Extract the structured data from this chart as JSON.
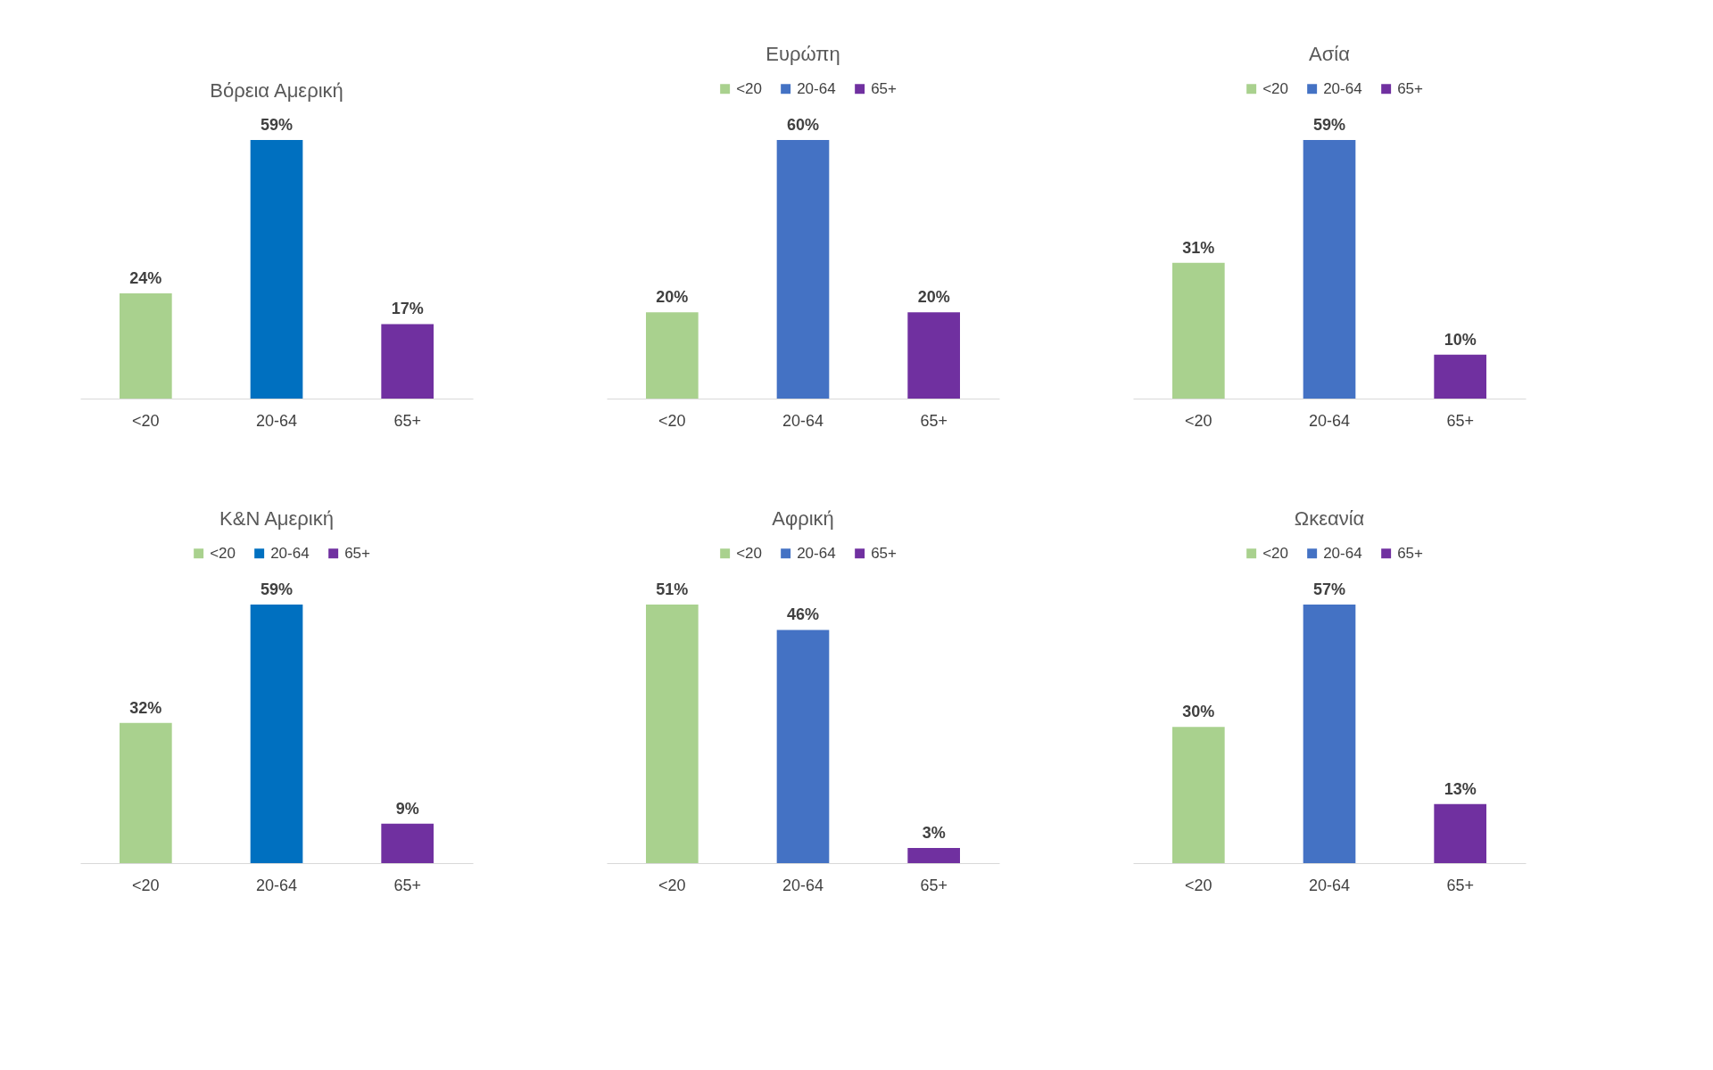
{
  "chart_data": [
    {
      "type": "bar",
      "title": "Βόρεια Αμερική",
      "categories": [
        "<20",
        "20-64",
        "65+"
      ],
      "values": [
        24,
        59,
        17
      ],
      "colors": [
        "#a9d18e",
        "#0070c0",
        "#7030a0"
      ],
      "value_labels": [
        "24%",
        "59%",
        "17%"
      ]
    },
    {
      "type": "bar",
      "title": "Ευρώπη",
      "categories": [
        "<20",
        "20-64",
        "65+"
      ],
      "stacked": true,
      "legend": "top",
      "series": [
        {
          "name": "<20",
          "color": "#a9d18e",
          "values": [
            20,
            null,
            null
          ],
          "value_labels": [
            "20%",
            null,
            null
          ]
        },
        {
          "name": "20-64",
          "color": "#4472c4",
          "values": [
            null,
            60,
            null
          ],
          "value_labels": [
            null,
            "60%",
            null
          ]
        },
        {
          "name": "65+",
          "color": "#7030a0",
          "values": [
            null,
            null,
            20
          ],
          "value_labels": [
            null,
            null,
            "20%"
          ]
        }
      ]
    },
    {
      "type": "bar",
      "title": "Ασία",
      "categories": [
        "<20",
        "20-64",
        "65+"
      ],
      "stacked": true,
      "legend": "top",
      "series": [
        {
          "name": "<20",
          "color": "#a9d18e",
          "values": [
            31,
            null,
            null
          ],
          "value_labels": [
            "31%",
            null,
            null
          ]
        },
        {
          "name": "20-64",
          "color": "#4472c4",
          "values": [
            null,
            59,
            null
          ],
          "value_labels": [
            null,
            "59%",
            null
          ]
        },
        {
          "name": "65+",
          "color": "#7030a0",
          "values": [
            null,
            null,
            10
          ],
          "value_labels": [
            null,
            null,
            "10%"
          ]
        }
      ]
    },
    {
      "type": "bar",
      "title": "Κ&Ν Αμερική",
      "categories": [
        "<20",
        "20-64",
        "65+"
      ],
      "stacked": true,
      "legend": "top",
      "series": [
        {
          "name": "<20",
          "color": "#a9d18e",
          "values": [
            32,
            null,
            null
          ],
          "value_labels": [
            "32%",
            null,
            null
          ]
        },
        {
          "name": "20-64",
          "color": "#0070c0",
          "values": [
            null,
            59,
            null
          ],
          "value_labels": [
            null,
            "59%",
            null
          ]
        },
        {
          "name": "65+",
          "color": "#7030a0",
          "values": [
            null,
            null,
            9
          ],
          "value_labels": [
            null,
            null,
            "9%"
          ]
        }
      ]
    },
    {
      "type": "bar",
      "title": "Αφρική",
      "categories": [
        "<20",
        "20-64",
        "65+"
      ],
      "stacked": true,
      "legend": "top",
      "series": [
        {
          "name": "<20",
          "color": "#a9d18e",
          "values": [
            51,
            null,
            null
          ],
          "value_labels": [
            "51%",
            null,
            null
          ]
        },
        {
          "name": "20-64",
          "color": "#4472c4",
          "values": [
            null,
            46,
            null
          ],
          "value_labels": [
            null,
            "46%",
            null
          ]
        },
        {
          "name": "65+",
          "color": "#7030a0",
          "values": [
            null,
            null,
            3
          ],
          "value_labels": [
            null,
            null,
            "3%"
          ]
        }
      ]
    },
    {
      "type": "bar",
      "title": "Ωκεανία",
      "categories": [
        "<20",
        "20-64",
        "65+"
      ],
      "stacked": true,
      "legend": "top",
      "series": [
        {
          "name": "<20",
          "color": "#a9d18e",
          "values": [
            30,
            null,
            null
          ],
          "value_labels": [
            "30%",
            null,
            null
          ]
        },
        {
          "name": "20-64",
          "color": "#4472c4",
          "values": [
            null,
            57,
            null
          ],
          "value_labels": [
            null,
            "57%",
            null
          ]
        },
        {
          "name": "65+",
          "color": "#7030a0",
          "values": [
            null,
            null,
            13
          ],
          "value_labels": [
            null,
            null,
            "13%"
          ]
        }
      ]
    }
  ]
}
